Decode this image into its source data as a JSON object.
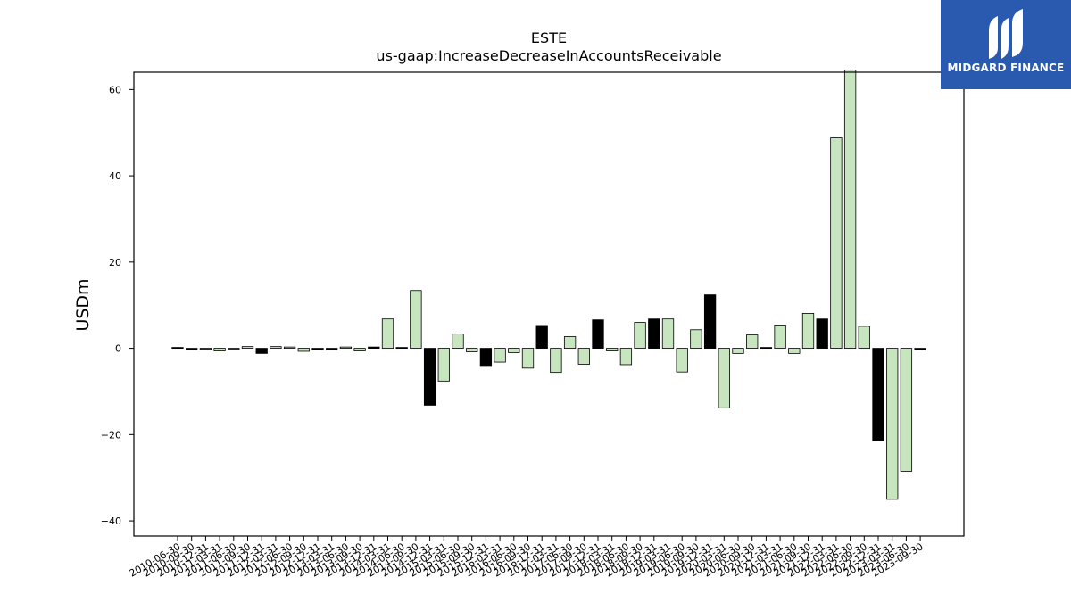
{
  "chart_data": {
    "type": "bar",
    "title": "ESTE",
    "subtitle": "us-gaap:IncreaseDecreaseInAccountsReceivable",
    "ylabel": "USDm",
    "xlabel": "",
    "ylim": [
      -43.5,
      64
    ],
    "yticks": [
      -40,
      -20,
      0,
      20,
      40,
      60
    ],
    "yticklabels": [
      "−40",
      "−20",
      "0",
      "20",
      "40",
      "60"
    ],
    "colors": {
      "positive_alt": "#c7e6c0",
      "highlight": "#000000"
    },
    "categories": [
      "2010-06-30",
      "2010-09-30",
      "2010-12-31",
      "2011-03-31",
      "2011-06-30",
      "2011-09-30",
      "2011-12-31",
      "2012-03-31",
      "2012-06-30",
      "2012-09-30",
      "2012-12-31",
      "2013-03-31",
      "2013-06-30",
      "2013-09-30",
      "2013-12-31",
      "2014-03-31",
      "2014-06-30",
      "2014-09-30",
      "2014-12-31",
      "2015-03-31",
      "2015-06-30",
      "2015-09-30",
      "2015-12-31",
      "2016-03-31",
      "2016-06-30",
      "2016-09-30",
      "2016-12-31",
      "2017-03-31",
      "2017-06-30",
      "2017-09-30",
      "2017-12-31",
      "2018-03-31",
      "2018-06-30",
      "2018-09-30",
      "2018-12-31",
      "2019-03-31",
      "2019-06-30",
      "2019-09-30",
      "2019-12-31",
      "2020-03-31",
      "2020-06-30",
      "2020-09-30",
      "2020-12-31",
      "2021-03-31",
      "2021-06-30",
      "2021-09-30",
      "2021-12-31",
      "2022-03-31",
      "2022-06-30",
      "2022-09-30",
      "2022-12-31",
      "2023-03-31",
      "2023-06-30",
      "2023-09-30"
    ],
    "values": [
      0.2,
      -0.3,
      -0.2,
      -0.6,
      -0.2,
      0.4,
      -1.2,
      0.4,
      0.3,
      -0.7,
      -0.4,
      -0.3,
      0.3,
      -0.6,
      0.3,
      6.8,
      0.2,
      13.4,
      -13.2,
      -7.6,
      3.3,
      -0.8,
      -4.0,
      -3.2,
      -1.0,
      -4.6,
      5.3,
      -5.6,
      2.7,
      -3.7,
      6.6,
      -0.6,
      -3.8,
      6.0,
      6.8,
      6.8,
      -5.5,
      4.3,
      12.4,
      -13.8,
      -1.2,
      3.1,
      0.2,
      5.4,
      -1.2,
      8.1,
      6.8,
      48.8,
      64.5,
      5.1,
      -21.3,
      -35.0,
      -28.5,
      -0.3
    ],
    "highlight": [
      true,
      true,
      false,
      false,
      false,
      false,
      true,
      false,
      false,
      false,
      true,
      true,
      false,
      false,
      true,
      false,
      true,
      false,
      true,
      false,
      false,
      false,
      true,
      false,
      false,
      false,
      true,
      false,
      false,
      false,
      true,
      false,
      false,
      false,
      true,
      false,
      false,
      false,
      true,
      false,
      false,
      false,
      true,
      false,
      false,
      false,
      true,
      false,
      false,
      false,
      true,
      false,
      false,
      true
    ]
  },
  "logo": {
    "text": "MIDGARD FINANCE",
    "icon": "midgard-logo-icon"
  }
}
